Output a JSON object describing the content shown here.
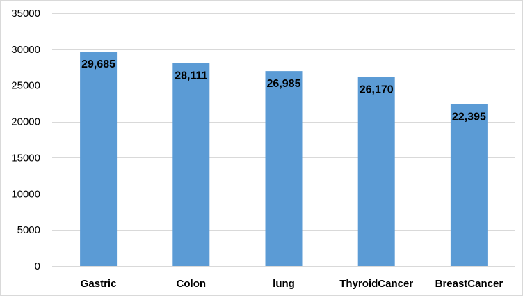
{
  "chart_data": {
    "type": "bar",
    "title": "",
    "xlabel": "",
    "ylabel": "",
    "categories": [
      "Gastric",
      "Colon",
      "lung",
      "ThyroidCancer",
      "BreastCancer"
    ],
    "values": [
      29685,
      28111,
      26985,
      26170,
      22395
    ],
    "data_labels": [
      "29,685",
      "28,111",
      "26,985",
      "26,170",
      "22,395"
    ],
    "ylim": [
      0,
      35000
    ],
    "yticks": [
      0,
      5000,
      10000,
      15000,
      20000,
      25000,
      30000,
      35000
    ],
    "ytick_labels": [
      "0",
      "5000",
      "10000",
      "15000",
      "20000",
      "25000",
      "30000",
      "35000"
    ],
    "grid": true,
    "legend": "none",
    "bar_color": "#5b9bd5"
  }
}
